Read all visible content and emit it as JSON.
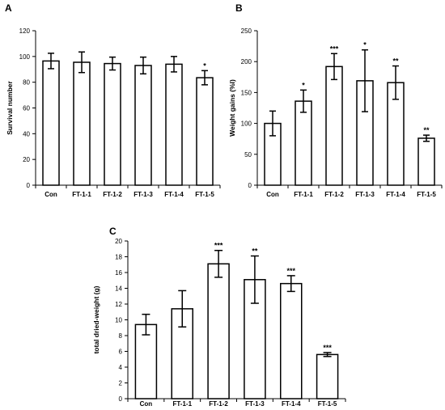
{
  "chart_data": [
    {
      "type": "bar",
      "panel_label": "A",
      "categories": [
        "Con",
        "FT-1-1",
        "FT-1-2",
        "FT-1-3",
        "FT-1-4",
        "FT-1-5"
      ],
      "values": [
        96.5,
        95.5,
        94.5,
        93,
        94,
        83.5
      ],
      "errors": [
        6,
        8,
        5,
        6.5,
        6,
        5.5
      ],
      "significance": [
        "",
        "",
        "",
        "",
        "",
        "*"
      ],
      "xlabel": "",
      "ylabel": "Survival number",
      "ylim": [
        0,
        120
      ],
      "yticks": [
        0,
        20,
        40,
        60,
        80,
        100,
        120
      ],
      "grid": false,
      "bar_color": "#ffffff",
      "edge_color": "#000000"
    },
    {
      "type": "bar",
      "panel_label": "B",
      "categories": [
        "Con",
        "FT-1-1",
        "FT-1-2",
        "FT-1-3",
        "FT-1-4",
        "FT-1-5"
      ],
      "values": [
        100,
        136,
        192,
        169,
        166,
        76
      ],
      "errors": [
        20,
        18,
        21,
        50,
        27,
        5
      ],
      "significance": [
        "",
        "*",
        "***",
        "*",
        "**",
        "**"
      ],
      "xlabel": "",
      "ylabel": "Weight gains (%l)",
      "ylim": [
        0,
        250
      ],
      "yticks": [
        0,
        50,
        100,
        150,
        200,
        250
      ],
      "grid": false,
      "bar_color": "#ffffff",
      "edge_color": "#000000"
    },
    {
      "type": "bar",
      "panel_label": "C",
      "categories": [
        "Con",
        "FT-1-1",
        "FT-1-2",
        "FT-1-3",
        "FT-1-4",
        "FT-1-5"
      ],
      "values": [
        9.4,
        11.4,
        17.1,
        15.1,
        14.6,
        5.6
      ],
      "errors": [
        1.3,
        2.3,
        1.7,
        3.0,
        1.0,
        0.25
      ],
      "significance": [
        "",
        "",
        "***",
        "**",
        "***",
        "***"
      ],
      "xlabel": "",
      "ylabel": "total dried-weight (g)",
      "ylim": [
        0,
        20
      ],
      "yticks": [
        0,
        2,
        4,
        6,
        8,
        10,
        12,
        14,
        16,
        18,
        20
      ],
      "grid": false,
      "bar_color": "#ffffff",
      "edge_color": "#000000"
    }
  ]
}
